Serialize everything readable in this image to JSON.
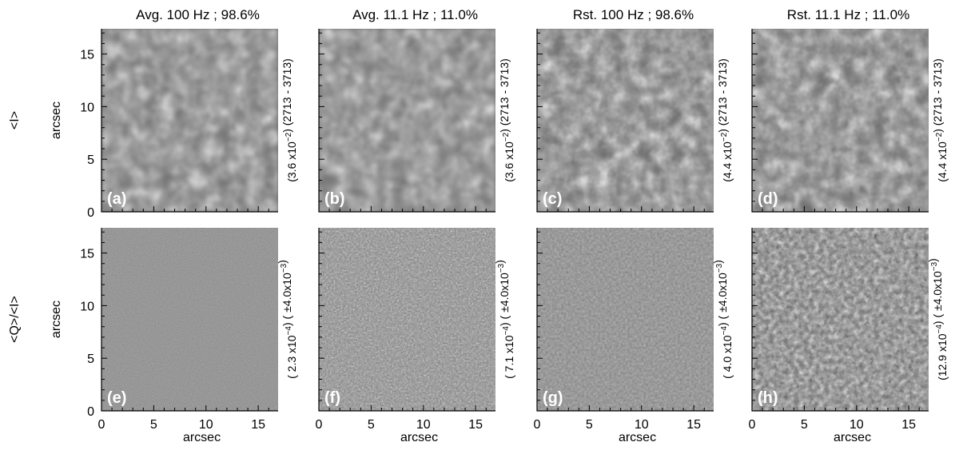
{
  "columns": [
    {
      "title": "Avg. 100 Hz ; 98.6%",
      "tag_i": "(a)",
      "tag_q": "(e)",
      "side_i_a": "(3.6 x10",
      "side_i_exp": "−2",
      "side_i_b": ") (2713 - 3713)",
      "side_q_a": "( 2.3 x10",
      "side_q_exp": "−4",
      "side_q_b": ")   ( ±4.0x10",
      "side_q_exp2": "−3",
      "side_q_c": ")"
    },
    {
      "title": "Avg. 11.1 Hz ; 11.0%",
      "tag_i": "(b)",
      "tag_q": "(f)",
      "side_i_a": "(3.6 x10",
      "side_i_exp": "−2",
      "side_i_b": ") (2713 - 3713)",
      "side_q_a": "( 7.1 x10",
      "side_q_exp": "−4",
      "side_q_b": ")   ( ±4.0x10",
      "side_q_exp2": "−3",
      "side_q_c": ")"
    },
    {
      "title": "Rst. 100 Hz ; 98.6%",
      "tag_i": "(c)",
      "tag_q": "(g)",
      "side_i_a": "(4.4 x10",
      "side_i_exp": "−2",
      "side_i_b": ") (2713 - 3713)",
      "side_q_a": "( 4.0 x10",
      "side_q_exp": "−4",
      "side_q_b": ")   ( ±4.0x10",
      "side_q_exp2": "−3",
      "side_q_c": ")"
    },
    {
      "title": "Rst. 11.1 Hz ; 11.0%",
      "tag_i": "(d)",
      "tag_q": "(h)",
      "side_i_a": "(4.4 x10",
      "side_i_exp": "−2",
      "side_i_b": ") (2713 - 3713)",
      "side_q_a": "(12.9 x10",
      "side_q_exp": "−4",
      "side_q_b": ")   ( ±4.0x10",
      "side_q_exp2": "−3",
      "side_q_c": ")"
    }
  ],
  "rows": [
    {
      "label": "<I>"
    },
    {
      "label": "<Q>/<I>"
    }
  ],
  "axis": {
    "ylabel": "arcsec",
    "xlabel": "arcsec",
    "yticks": [
      "0",
      "5",
      "10",
      "15"
    ],
    "xticks": [
      "0",
      "5",
      "10",
      "15"
    ]
  },
  "panel_style": {
    "granulation_bg": "#6e6e6e",
    "noise_bg": "#7c7c7c",
    "tag_color": "#ffffff"
  }
}
